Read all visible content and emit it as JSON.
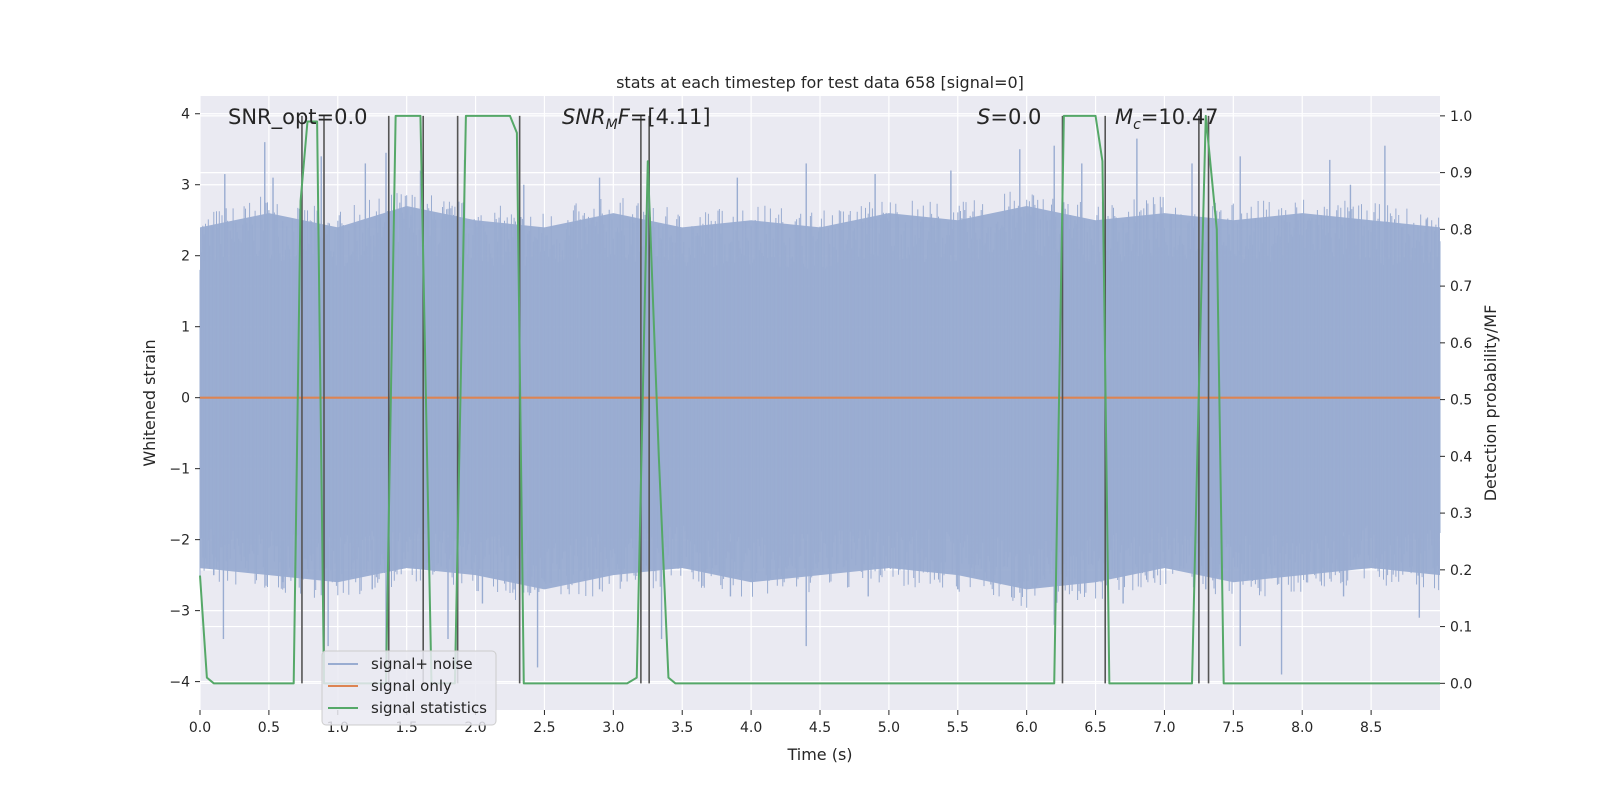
{
  "chart_data": {
    "type": "line",
    "title": "stats at each timestep for test data 658 [signal=0]",
    "xlabel": "Time (s)",
    "ylabel": "Whitened strain",
    "y2label": "Detection probability/MF",
    "xlim": [
      0,
      9
    ],
    "ylim": [
      -4.4,
      4.25
    ],
    "y2lim": [
      -0.047,
      1.035
    ],
    "xticks": [
      "0.0",
      "0.5",
      "1.0",
      "1.5",
      "2.0",
      "2.5",
      "3.0",
      "3.5",
      "4.0",
      "4.5",
      "5.0",
      "5.5",
      "6.0",
      "6.5",
      "7.0",
      "7.5",
      "8.0",
      "8.5"
    ],
    "yticks": [
      "−4",
      "−3",
      "−2",
      "−1",
      "0",
      "1",
      "2",
      "3",
      "4"
    ],
    "y2ticks": [
      "0.0",
      "0.1",
      "0.2",
      "0.3",
      "0.4",
      "0.5",
      "0.6",
      "0.7",
      "0.8",
      "0.9",
      "1.0"
    ],
    "grid": true,
    "legend_position": "lower-left",
    "colors": {
      "noise": "#99acd1",
      "signal_only": "#dd8452",
      "statistics": "#55a868",
      "vlines": "#555555",
      "plot_bg": "#eaeaf2",
      "grid": "#ffffff"
    },
    "annotations": {
      "snr_opt": "SNR_opt=0.0",
      "snr_mf_sym": "SNR",
      "snr_mf_sub": "M",
      "snr_mf_sym2": "F",
      "snr_mf_val": "=[4.11]",
      "s_sym": "S",
      "s_val": "=0.0",
      "mc_sym": "M",
      "mc_sub": "c",
      "mc_val": "=10.47"
    },
    "series": [
      {
        "name": "signal+ noise",
        "kind": "noise",
        "envelope": {
          "x": [
            0.0,
            0.5,
            1.0,
            1.5,
            2.0,
            2.5,
            3.0,
            3.5,
            4.0,
            4.5,
            5.0,
            5.5,
            6.0,
            6.5,
            7.0,
            7.5,
            8.0,
            8.5,
            9.0
          ],
          "upper": [
            2.4,
            2.6,
            2.4,
            2.7,
            2.5,
            2.4,
            2.6,
            2.4,
            2.5,
            2.4,
            2.6,
            2.5,
            2.7,
            2.5,
            2.6,
            2.5,
            2.6,
            2.5,
            2.4
          ],
          "lower": [
            -2.4,
            -2.5,
            -2.6,
            -2.4,
            -2.5,
            -2.7,
            -2.5,
            -2.4,
            -2.6,
            -2.5,
            -2.4,
            -2.5,
            -2.7,
            -2.6,
            -2.4,
            -2.6,
            -2.5,
            -2.4,
            -2.5
          ]
        },
        "spikes": [
          {
            "x": 0.03,
            "y": 2.3
          },
          {
            "x": 0.18,
            "y": 3.15
          },
          {
            "x": 0.47,
            "y": 3.6
          },
          {
            "x": 0.53,
            "y": 3.1
          },
          {
            "x": 0.88,
            "y": 3.4
          },
          {
            "x": 1.2,
            "y": 3.3
          },
          {
            "x": 1.35,
            "y": 3.45
          },
          {
            "x": 1.6,
            "y": 3.2
          },
          {
            "x": 1.92,
            "y": 3.35
          },
          {
            "x": 2.35,
            "y": 3.0
          },
          {
            "x": 2.9,
            "y": 3.1
          },
          {
            "x": 3.25,
            "y": 3.25
          },
          {
            "x": 3.9,
            "y": 3.1
          },
          {
            "x": 4.4,
            "y": 3.3
          },
          {
            "x": 4.9,
            "y": 3.15
          },
          {
            "x": 5.45,
            "y": 3.2
          },
          {
            "x": 5.95,
            "y": 3.5
          },
          {
            "x": 6.2,
            "y": 3.55
          },
          {
            "x": 6.4,
            "y": 3.3
          },
          {
            "x": 6.8,
            "y": 3.65
          },
          {
            "x": 7.2,
            "y": 3.3
          },
          {
            "x": 7.55,
            "y": 3.4
          },
          {
            "x": 8.2,
            "y": 3.35
          },
          {
            "x": 8.35,
            "y": 3.0
          },
          {
            "x": 8.6,
            "y": 3.55
          },
          {
            "x": 8.9,
            "y": 2.5
          },
          {
            "x": 0.1,
            "y": -2.5
          },
          {
            "x": 0.17,
            "y": -3.4
          },
          {
            "x": 0.6,
            "y": -2.6
          },
          {
            "x": 0.93,
            "y": -3.5
          },
          {
            "x": 1.25,
            "y": -2.7
          },
          {
            "x": 1.35,
            "y": -3.6
          },
          {
            "x": 1.8,
            "y": -3.4
          },
          {
            "x": 2.05,
            "y": -2.9
          },
          {
            "x": 2.45,
            "y": -3.8
          },
          {
            "x": 2.9,
            "y": -2.7
          },
          {
            "x": 3.35,
            "y": -3.4
          },
          {
            "x": 3.85,
            "y": -2.8
          },
          {
            "x": 4.4,
            "y": -3.5
          },
          {
            "x": 4.85,
            "y": -2.8
          },
          {
            "x": 5.5,
            "y": -2.7
          },
          {
            "x": 5.95,
            "y": -2.6
          },
          {
            "x": 6.2,
            "y": -3.2
          },
          {
            "x": 6.7,
            "y": -2.9
          },
          {
            "x": 7.3,
            "y": -2.7
          },
          {
            "x": 7.55,
            "y": -3.5
          },
          {
            "x": 7.85,
            "y": -3.9
          },
          {
            "x": 8.3,
            "y": -2.8
          },
          {
            "x": 8.85,
            "y": -3.1
          }
        ]
      },
      {
        "name": "signal only",
        "kind": "line",
        "x": [
          0.0,
          9.0
        ],
        "y": [
          0.0,
          0.0
        ]
      },
      {
        "name": "signal statistics",
        "kind": "line2",
        "x": [
          0.0,
          0.05,
          0.1,
          0.68,
          0.73,
          0.78,
          0.85,
          0.9,
          0.95,
          1.35,
          1.42,
          1.6,
          1.68,
          1.85,
          1.93,
          2.25,
          2.3,
          2.35,
          3.1,
          3.17,
          3.25,
          3.33,
          3.4,
          3.45,
          6.2,
          6.27,
          6.5,
          6.55,
          6.6,
          7.2,
          7.25,
          7.3,
          7.38,
          7.43,
          7.48,
          9.0
        ],
        "y": [
          0.19,
          0.01,
          0.0,
          0.0,
          0.85,
          0.99,
          0.99,
          0.0,
          0.0,
          0.0,
          1.0,
          1.0,
          0.0,
          0.0,
          1.0,
          1.0,
          0.97,
          0.0,
          0.0,
          0.01,
          0.92,
          0.4,
          0.01,
          0.0,
          0.0,
          1.0,
          1.0,
          0.92,
          0.0,
          0.0,
          0.52,
          1.0,
          0.8,
          0.0,
          0.0,
          0.0
        ]
      }
    ],
    "vlines": [
      0.74,
      0.9,
      1.37,
      1.62,
      1.87,
      2.32,
      3.2,
      3.26,
      6.26,
      6.57,
      7.25,
      7.32
    ]
  }
}
